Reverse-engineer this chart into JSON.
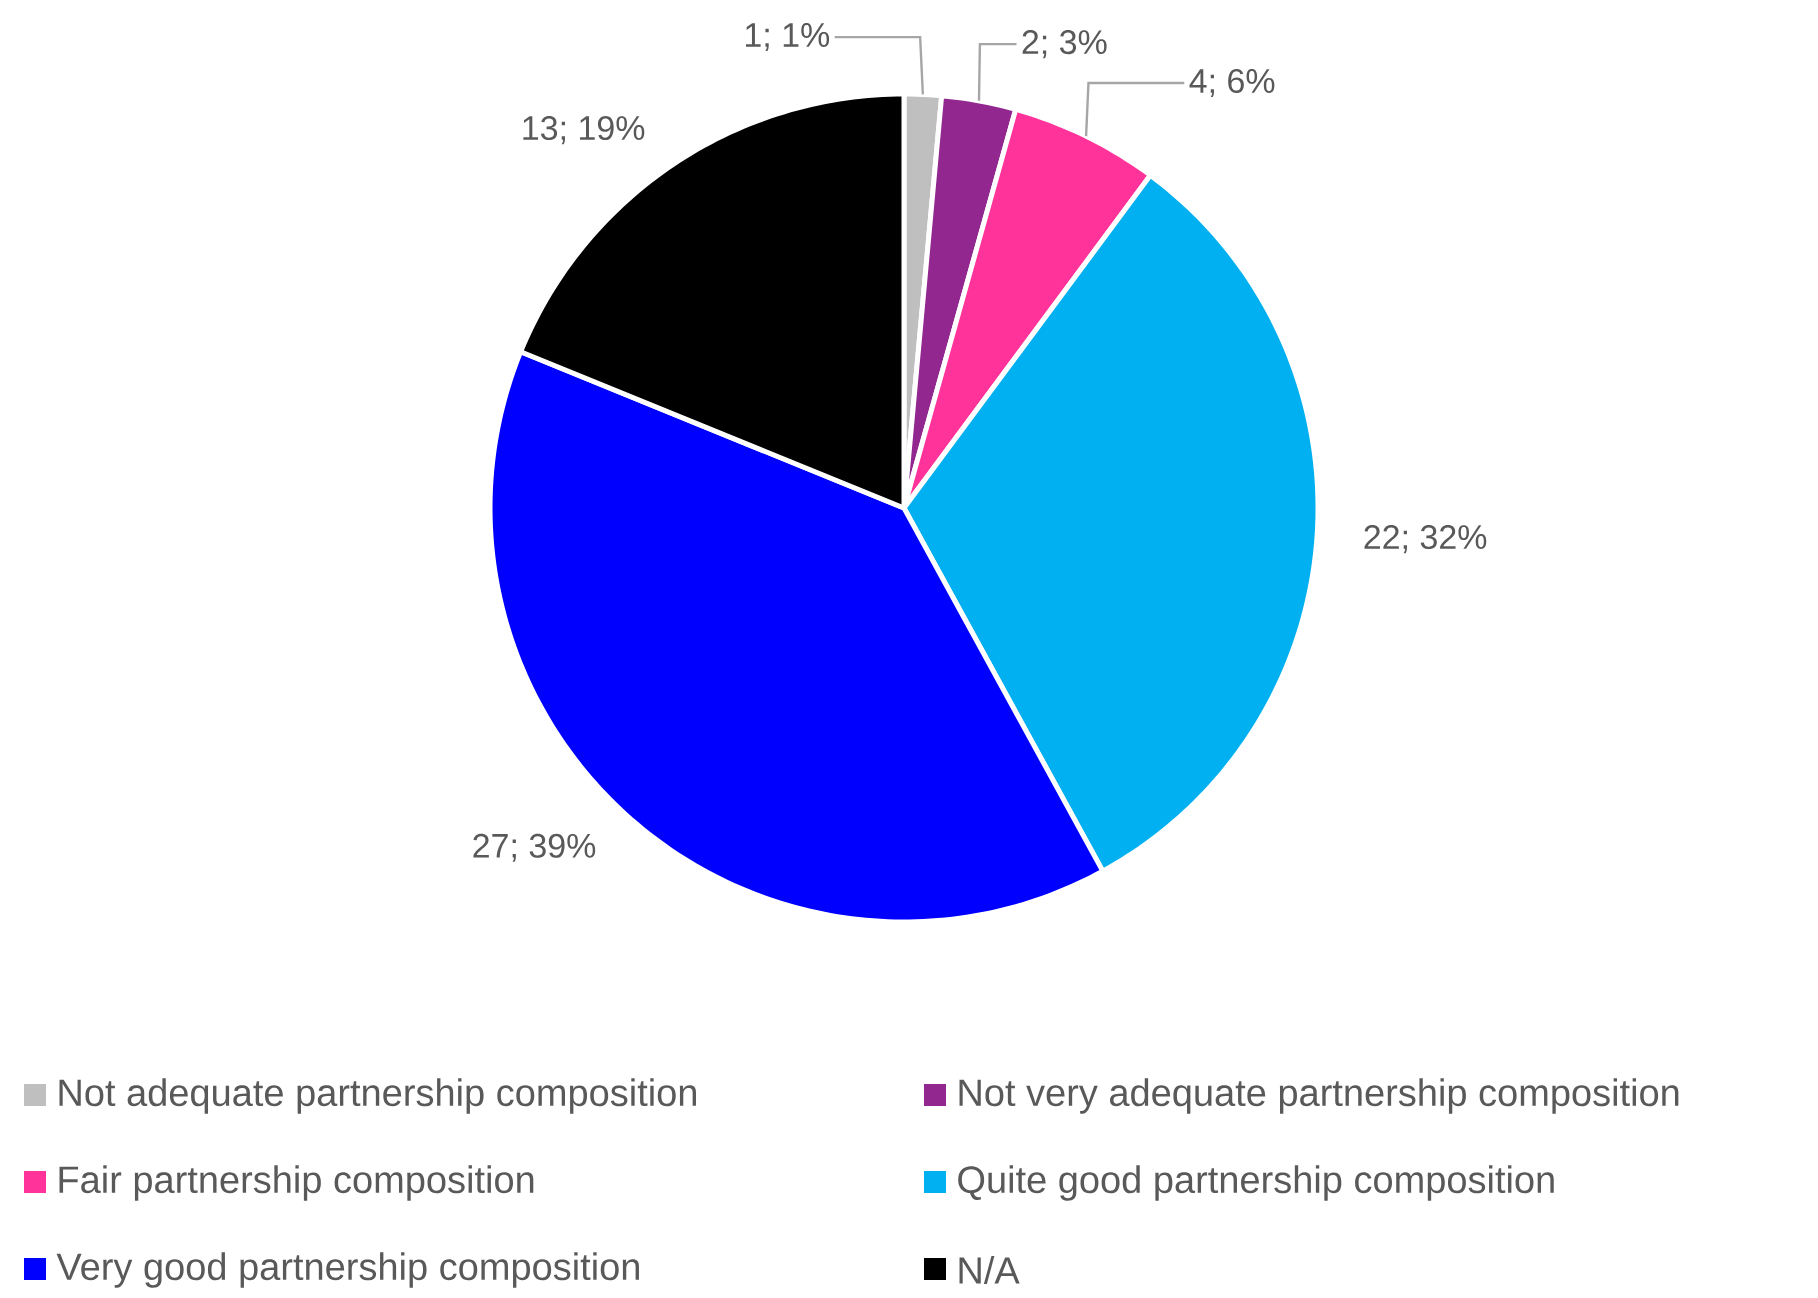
{
  "chart_data": {
    "type": "pie",
    "categories": [
      "Not adequate partnership composition",
      "Not very adequate partnership composition",
      "Fair partnership composition",
      "Quite good partnership composition",
      "Very good partnership composition",
      "N/A"
    ],
    "values": [
      1,
      2,
      4,
      22,
      27,
      13
    ],
    "colors": [
      "#bfbfbf",
      "#92278f",
      "#ff3399",
      "#00b0f0",
      "#0000ff",
      "#000000"
    ],
    "value_labels": [
      "1; 1%",
      "2; 3%",
      "4; 6%",
      "22; 32%",
      "27; 39%",
      "13; 19%"
    ],
    "legend": "bottom"
  }
}
